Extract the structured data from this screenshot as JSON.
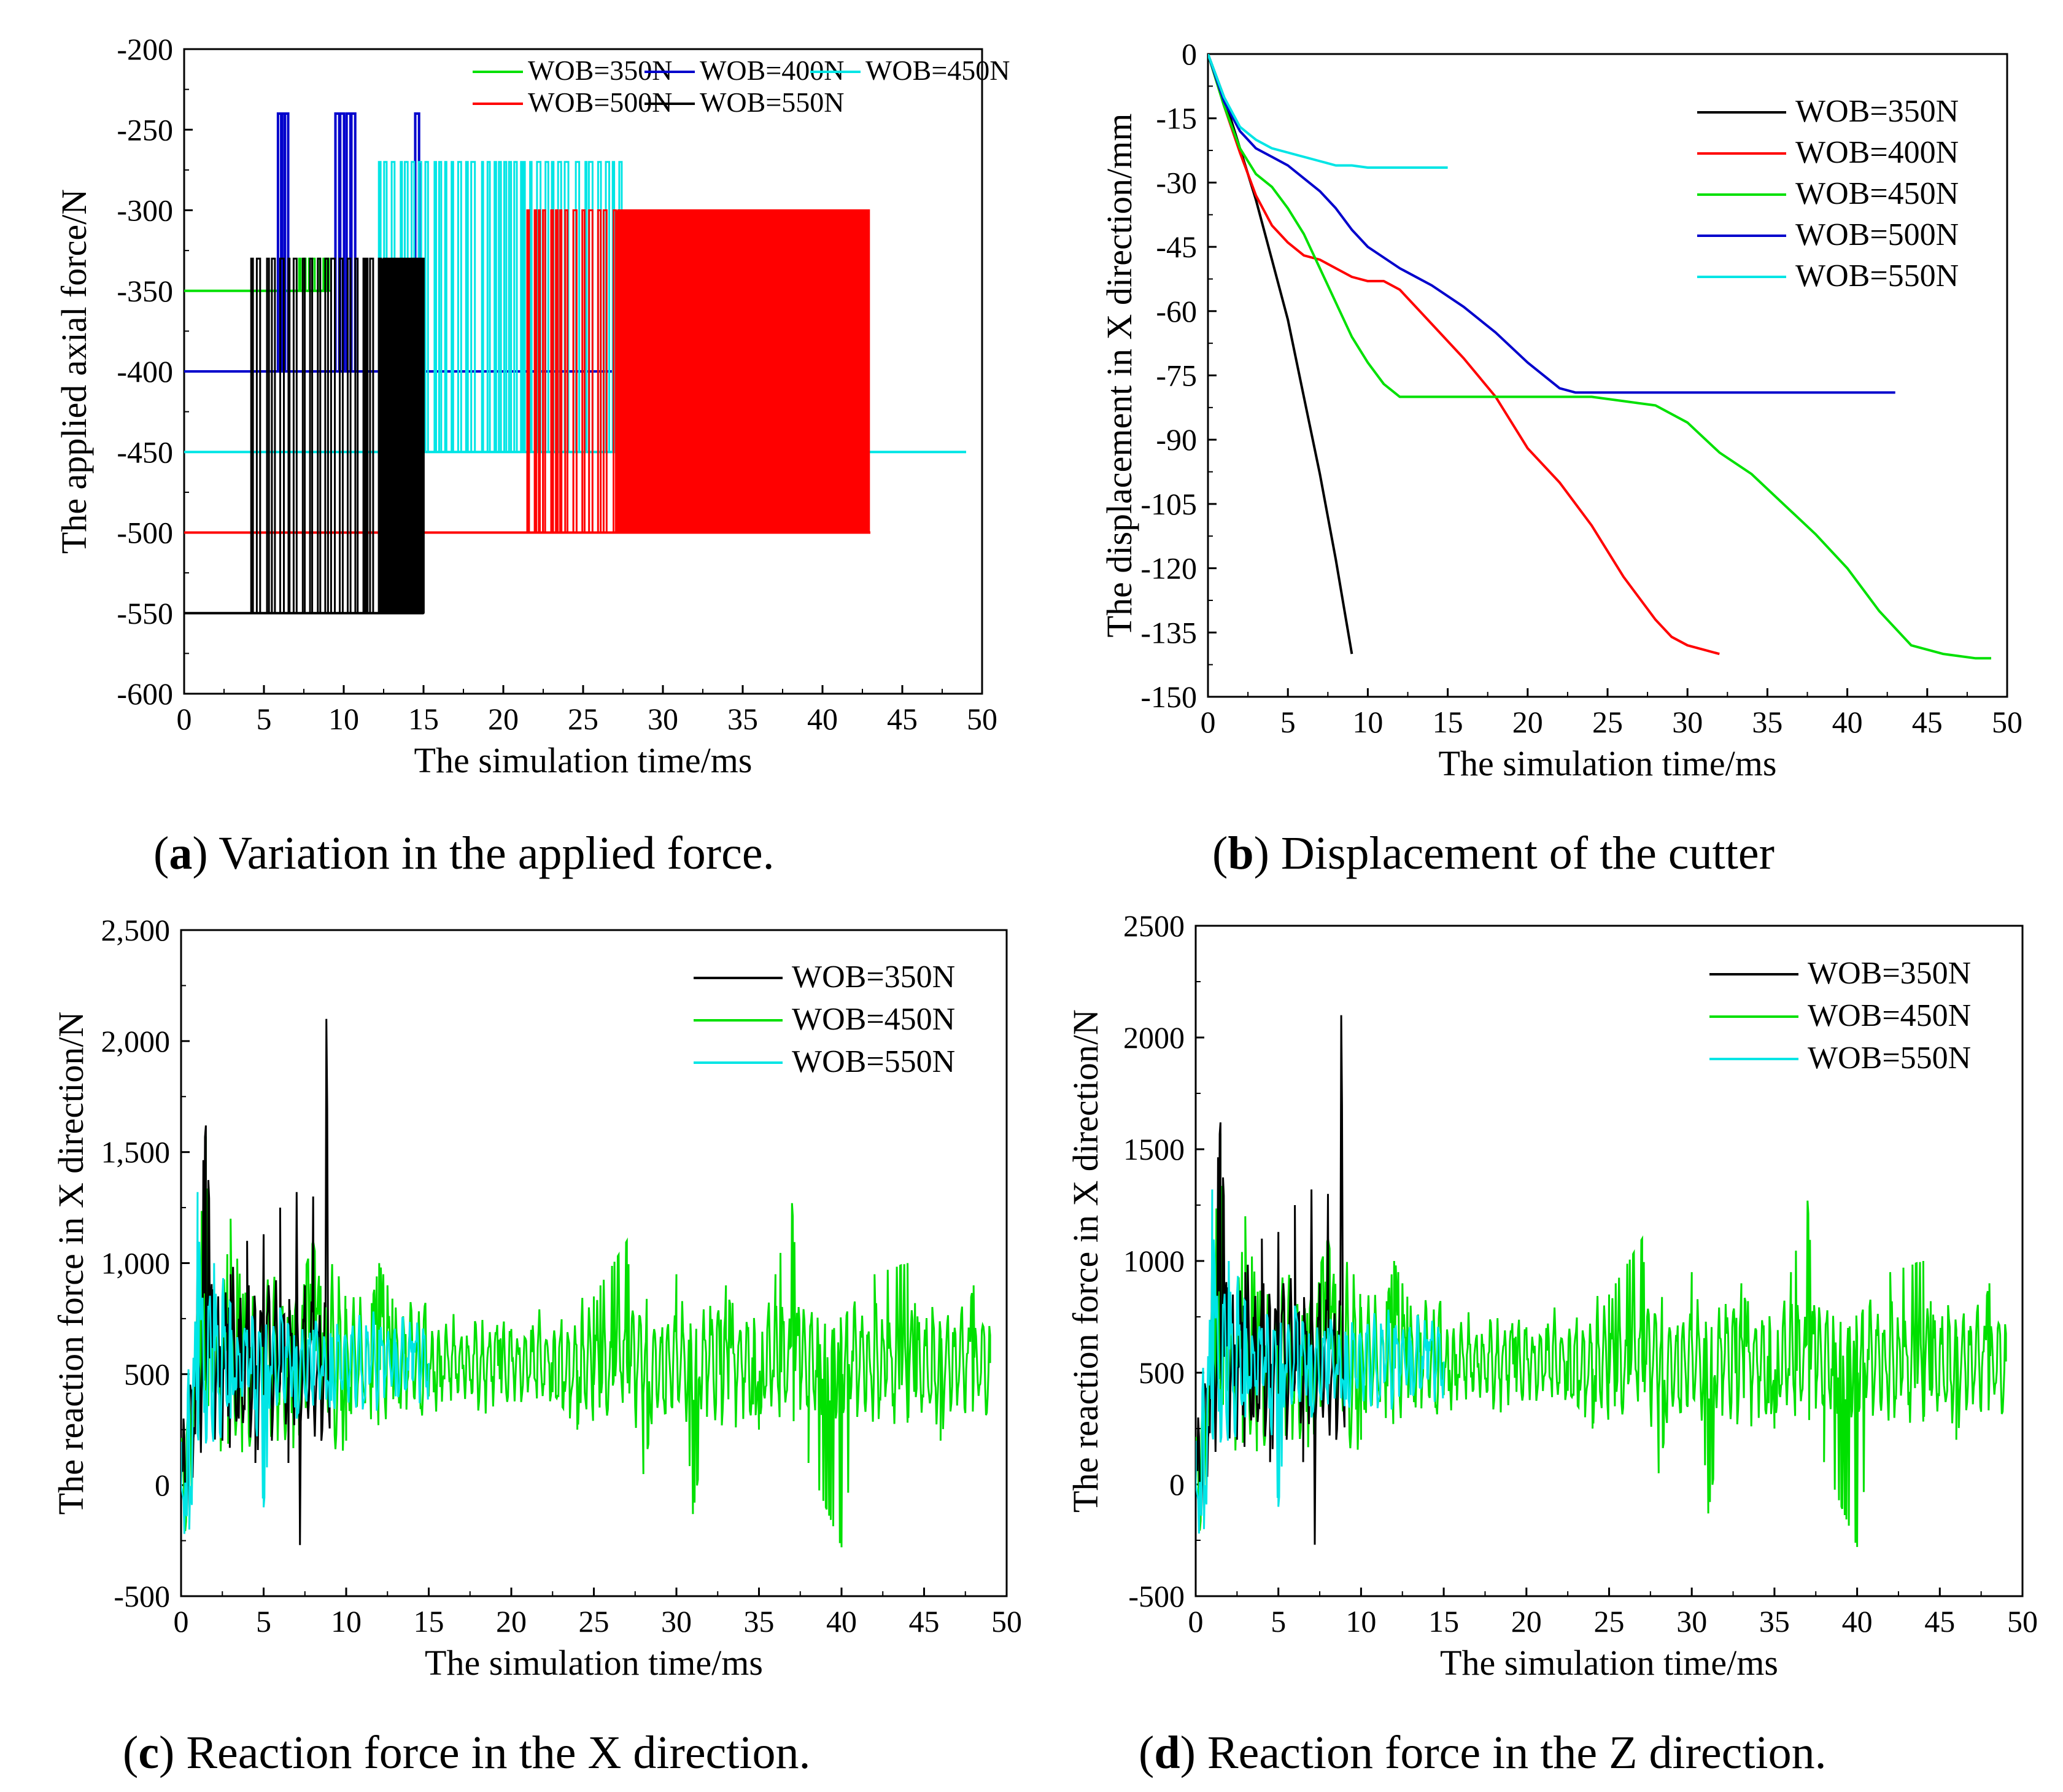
{
  "chart_data": [
    {
      "id": "a",
      "type": "line",
      "caption_letter": "a",
      "caption_text": ") Variation in the applied force.",
      "xlabel": "The simulation time/ms",
      "ylabel": "The applied axial force/N",
      "xlim": [
        0,
        50
      ],
      "ylim": [
        -600,
        -200
      ],
      "xticks": [
        "0",
        "5",
        "10",
        "15",
        "20",
        "25",
        "30",
        "35",
        "40",
        "45",
        "50"
      ],
      "yticks": [
        "-200",
        "-250",
        "-300",
        "-350",
        "-400",
        "-450",
        "-500",
        "-550",
        "-600"
      ],
      "legend": "top-right, two rows",
      "series": [
        {
          "name": "WOB=350N",
          "color": "#00e000",
          "base": -350,
          "peak": -330,
          "start": 0,
          "end": 9,
          "bursts": [
            [
              7.2,
              9.0
            ]
          ],
          "fill_from": 99,
          "spikes": []
        },
        {
          "name": "WOB=400N",
          "color": "#0000cc",
          "base": -400,
          "peak": -240,
          "start": 0,
          "end": 32,
          "bursts": [],
          "fill_from": 99,
          "spikes": [
            6.0,
            6.2,
            6.4,
            9.6,
            9.9,
            10.3,
            10.6,
            14.6
          ]
        },
        {
          "name": "WOB=450N",
          "color": "#00e5e5",
          "base": -450,
          "peak": -270,
          "start": 0,
          "end": 49,
          "bursts": [
            [
              12.2,
              27.5
            ]
          ],
          "fill_from": 99,
          "spikes": []
        },
        {
          "name": "WOB=500N",
          "color": "#ff0000",
          "base": -500,
          "peak": -300,
          "start": 0,
          "end": 43,
          "bursts": [
            [
              21.5,
              42.9
            ]
          ],
          "fill_from": 27.0,
          "spikes": []
        },
        {
          "name": "WOB=550N",
          "color": "#000000",
          "base": -550,
          "peak": -330,
          "start": 0,
          "end": 15,
          "bursts": [
            [
              4.2,
              15.0
            ]
          ],
          "fill_from": 12.2,
          "spikes": []
        }
      ]
    },
    {
      "id": "b",
      "type": "line",
      "caption_letter": "b",
      "caption_text": ") Displacement of the cutter",
      "xlabel": "The simulation time/ms",
      "ylabel": "The displacement in X direction/mm",
      "xlim": [
        0,
        50
      ],
      "ylim": [
        -150,
        0
      ],
      "xticks": [
        "0",
        "5",
        "10",
        "15",
        "20",
        "25",
        "30",
        "35",
        "40",
        "45",
        "50"
      ],
      "yticks": [
        "0",
        "-15",
        "-30",
        "-45",
        "-60",
        "-75",
        "-90",
        "-105",
        "-120",
        "-135",
        "-150"
      ],
      "legend": "top-right",
      "series": [
        {
          "name": "WOB=350N",
          "color": "#000000",
          "x": [
            0,
            1,
            2,
            3,
            4,
            5,
            6,
            7,
            8,
            9
          ],
          "y": [
            0,
            -10,
            -22,
            -34,
            -48,
            -62,
            -80,
            -98,
            -118,
            -140
          ]
        },
        {
          "name": "WOB=400N",
          "color": "#ff0000",
          "x": [
            0,
            1,
            2,
            3,
            4,
            5,
            6,
            7,
            8,
            9,
            10,
            11,
            12,
            14,
            16,
            18,
            20,
            22,
            24,
            26,
            28,
            29,
            30,
            31,
            32
          ],
          "y": [
            0,
            -12,
            -23,
            -33,
            -40,
            -44,
            -47,
            -48,
            -50,
            -52,
            -53,
            -53,
            -55,
            -63,
            -71,
            -80,
            -92,
            -100,
            -110,
            -122,
            -132,
            -136,
            -138,
            -139,
            -140
          ]
        },
        {
          "name": "WOB=450N",
          "color": "#00e000",
          "x": [
            0,
            1,
            2,
            3,
            4,
            5,
            6,
            7,
            8,
            9,
            10,
            11,
            12,
            15,
            20,
            24,
            26,
            28,
            30,
            32,
            34,
            36,
            38,
            40,
            42,
            44,
            46,
            48,
            49
          ],
          "y": [
            0,
            -12,
            -22,
            -28,
            -31,
            -36,
            -42,
            -50,
            -58,
            -66,
            -72,
            -77,
            -80,
            -80,
            -80,
            -80,
            -81,
            -82,
            -86,
            -93,
            -98,
            -105,
            -112,
            -120,
            -130,
            -138,
            -140,
            -141,
            -141
          ]
        },
        {
          "name": "WOB=500N",
          "color": "#0000cc",
          "x": [
            0,
            1,
            2,
            3,
            4,
            5,
            6,
            7,
            8,
            9,
            10,
            12,
            14,
            16,
            18,
            20,
            22,
            23,
            25,
            30,
            35,
            40,
            43
          ],
          "y": [
            0,
            -11,
            -18,
            -22,
            -24,
            -26,
            -29,
            -32,
            -36,
            -41,
            -45,
            -50,
            -54,
            -59,
            -65,
            -72,
            -78,
            -79,
            -79,
            -79,
            -79,
            -79,
            -79
          ]
        },
        {
          "name": "WOB=550N",
          "color": "#00e5e5",
          "x": [
            0,
            1,
            2,
            3,
            4,
            5,
            6,
            7,
            8,
            9,
            10,
            11,
            12,
            13,
            14,
            15
          ],
          "y": [
            0,
            -10,
            -17,
            -20,
            -22,
            -23,
            -24,
            -25,
            -26,
            -26,
            -26.5,
            -26.5,
            -26.5,
            -26.5,
            -26.5,
            -26.5
          ]
        }
      ]
    },
    {
      "id": "c",
      "type": "line",
      "caption_letter": "c",
      "caption_text": ") Reaction force in the X direction.",
      "xlabel": "The simulation time/ms",
      "ylabel": "The reaction force in X direction/N",
      "xlim": [
        0,
        50
      ],
      "ylim": [
        -500,
        2500
      ],
      "xticks": [
        "0",
        "5",
        "10",
        "15",
        "20",
        "25",
        "30",
        "35",
        "40",
        "45",
        "50"
      ],
      "yticks": [
        "-500",
        "0",
        "500",
        "1,000",
        "1,500",
        "2,000",
        "2,500"
      ],
      "legend": "top-right",
      "series": [
        {
          "name": "WOB=350N",
          "color": "#000000",
          "x": [
            0,
            0.5,
            1,
            1.5,
            2,
            2.5,
            3,
            3.5,
            4,
            4.5,
            5,
            5.5,
            6,
            6.5,
            7,
            7.2,
            7.5,
            8,
            8.5,
            8.8,
            9
          ],
          "y": [
            0,
            300,
            1100,
            1620,
            800,
            200,
            950,
            300,
            1100,
            100,
            1130,
            200,
            1250,
            100,
            1320,
            -270,
            900,
            1300,
            200,
            2100,
            500
          ]
        },
        {
          "name": "WOB=450N",
          "color": "#00e000",
          "x": [
            0,
            1,
            1.5,
            2,
            3,
            5,
            8,
            10,
            12,
            15,
            20,
            24,
            25,
            27,
            28,
            30,
            31,
            33,
            35,
            36,
            37,
            38,
            40,
            42,
            44,
            46,
            48,
            49
          ],
          "y": [
            0,
            900,
            1570,
            400,
            1200,
            300,
            1100,
            200,
            1000,
            400,
            700,
            250,
            850,
            1100,
            50,
            950,
            -130,
            900,
            250,
            950,
            1270,
            100,
            -280,
            950,
            1000,
            200,
            900,
            550
          ]
        },
        {
          "name": "WOB=550N",
          "color": "#00e5e5",
          "x": [
            0,
            0.5,
            1,
            1.5,
            2,
            3,
            4,
            5,
            6,
            7,
            8,
            9,
            10,
            11,
            12,
            13,
            14,
            15
          ],
          "y": [
            0,
            -200,
            1320,
            200,
            1000,
            300,
            700,
            -100,
            800,
            300,
            700,
            350,
            650,
            350,
            700,
            400,
            650,
            550
          ]
        }
      ]
    },
    {
      "id": "d",
      "type": "line",
      "caption_letter": "d",
      "caption_text": ") Reaction force in the Z direction.",
      "xlabel": "The simulation time/ms",
      "ylabel": "The reaction force in X direction/N",
      "xlim": [
        0,
        50
      ],
      "ylim": [
        -500,
        2500
      ],
      "xticks": [
        "0",
        "5",
        "10",
        "15",
        "20",
        "25",
        "30",
        "35",
        "40",
        "45",
        "50"
      ],
      "yticks": [
        "-500",
        "0",
        "500",
        "1000",
        "1500",
        "2000",
        "2500"
      ],
      "legend": "top-right",
      "series": [
        {
          "name": "WOB=350N",
          "color": "#000000",
          "x": [
            0,
            0.5,
            1,
            1.5,
            2,
            2.5,
            3,
            3.5,
            4,
            4.5,
            5,
            5.5,
            6,
            6.5,
            7,
            7.2,
            7.5,
            8,
            8.5,
            8.8,
            9
          ],
          "y": [
            0,
            300,
            1100,
            1620,
            800,
            200,
            950,
            300,
            1100,
            100,
            1130,
            200,
            1250,
            100,
            1320,
            -270,
            900,
            1300,
            200,
            2100,
            500
          ]
        },
        {
          "name": "WOB=450N",
          "color": "#00e000",
          "x": [
            0,
            1,
            1.5,
            2,
            3,
            5,
            8,
            10,
            12,
            15,
            20,
            24,
            25,
            27,
            28,
            30,
            31,
            33,
            35,
            36,
            37,
            38,
            40,
            42,
            44,
            46,
            48,
            49
          ],
          "y": [
            0,
            900,
            1570,
            400,
            1200,
            300,
            1100,
            200,
            1000,
            400,
            700,
            250,
            850,
            1100,
            50,
            950,
            -130,
            900,
            250,
            950,
            1270,
            100,
            -280,
            950,
            1000,
            200,
            900,
            550
          ]
        },
        {
          "name": "WOB=550N",
          "color": "#00e5e5",
          "x": [
            0,
            0.5,
            1,
            1.5,
            2,
            3,
            4,
            5,
            6,
            7,
            8,
            9,
            10,
            11,
            12,
            13,
            14,
            15
          ],
          "y": [
            0,
            -200,
            1320,
            200,
            1000,
            300,
            700,
            -100,
            800,
            300,
            700,
            350,
            650,
            350,
            700,
            400,
            650,
            550
          ]
        }
      ]
    }
  ]
}
